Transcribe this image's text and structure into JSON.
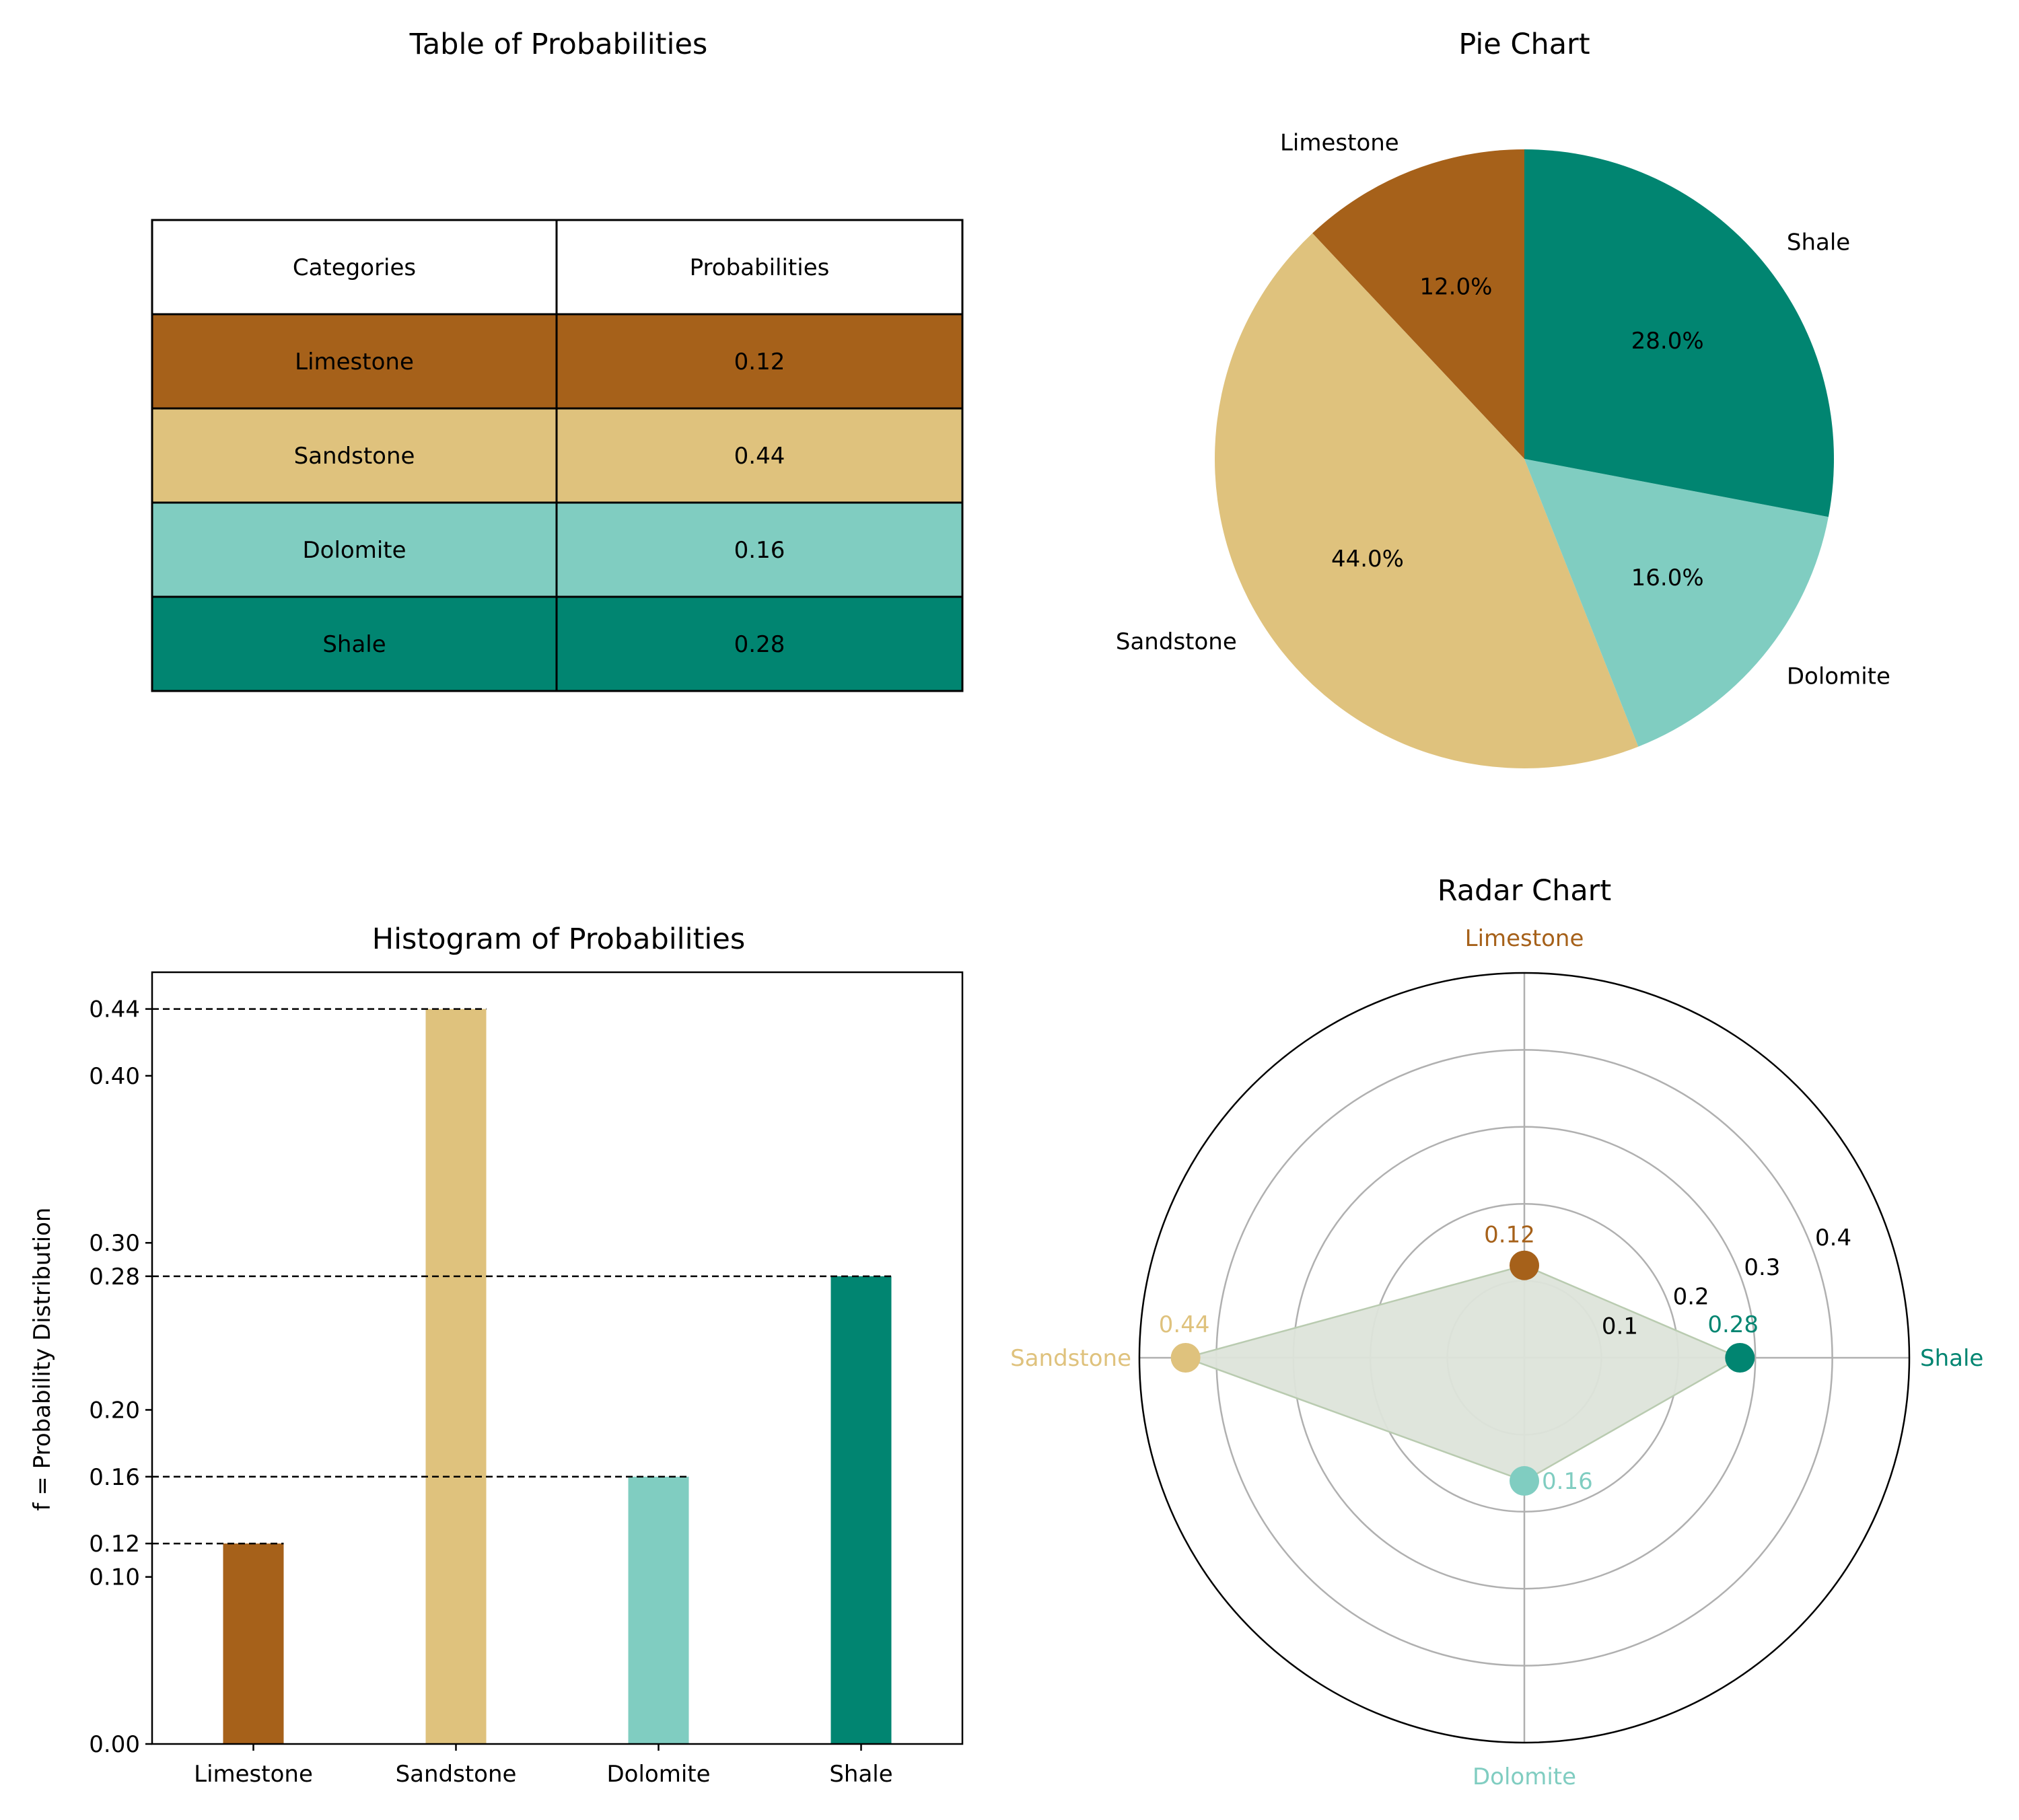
{
  "colors": {
    "limestone": "#a6611a",
    "sandstone": "#dfc27d",
    "dolomite": "#80cdc1",
    "shale": "#018571",
    "radar_fill": "#dde4da",
    "radar_edge": "#b9cbb0"
  },
  "chart_data": [
    {
      "type": "table",
      "title": "Table of Probabilities",
      "columns": [
        "Categories",
        "Probabilities"
      ],
      "rows": [
        {
          "category": "Limestone",
          "value": "0.12"
        },
        {
          "category": "Sandstone",
          "value": "0.44"
        },
        {
          "category": "Dolomite",
          "value": "0.16"
        },
        {
          "category": "Shale",
          "value": "0.28"
        }
      ]
    },
    {
      "type": "pie",
      "title": "Pie Chart",
      "categories": [
        "Limestone",
        "Sandstone",
        "Dolomite",
        "Shale"
      ],
      "values": [
        0.12,
        0.44,
        0.16,
        0.28
      ],
      "pct_labels": [
        "12.0%",
        "44.0%",
        "16.0%",
        "28.0%"
      ],
      "start_angle_deg": 90,
      "direction": "counterclockwise"
    },
    {
      "type": "bar",
      "title": "Histogram of Probabilities",
      "categories": [
        "Limestone",
        "Sandstone",
        "Dolomite",
        "Shale"
      ],
      "values": [
        0.12,
        0.44,
        0.16,
        0.28
      ],
      "ylabel": "f = Probability Distribution",
      "xlabel": "",
      "ylim": [
        0,
        0.462
      ],
      "yticks": [
        0.0,
        0.1,
        0.12,
        0.16,
        0.2,
        0.28,
        0.3,
        0.4,
        0.44
      ],
      "ytick_labels": [
        "0.00",
        "0.10",
        "0.12",
        "0.16",
        "0.20",
        "0.28",
        "0.30",
        "0.40",
        "0.44"
      ],
      "reference_lines": "dashed lines from y-axis to each bar top"
    },
    {
      "type": "radar",
      "title": "Radar Chart",
      "categories": [
        "Limestone",
        "Sandstone",
        "Dolomite",
        "Shale"
      ],
      "values": [
        0.12,
        0.44,
        0.16,
        0.28
      ],
      "value_labels": [
        "0.12",
        "0.44",
        "0.16",
        "0.28"
      ],
      "rmax": 0.5,
      "rticks": [
        0.1,
        0.2,
        0.3,
        0.4
      ],
      "rtick_labels": [
        "0.1",
        "0.2",
        "0.3",
        "0.4"
      ]
    }
  ]
}
